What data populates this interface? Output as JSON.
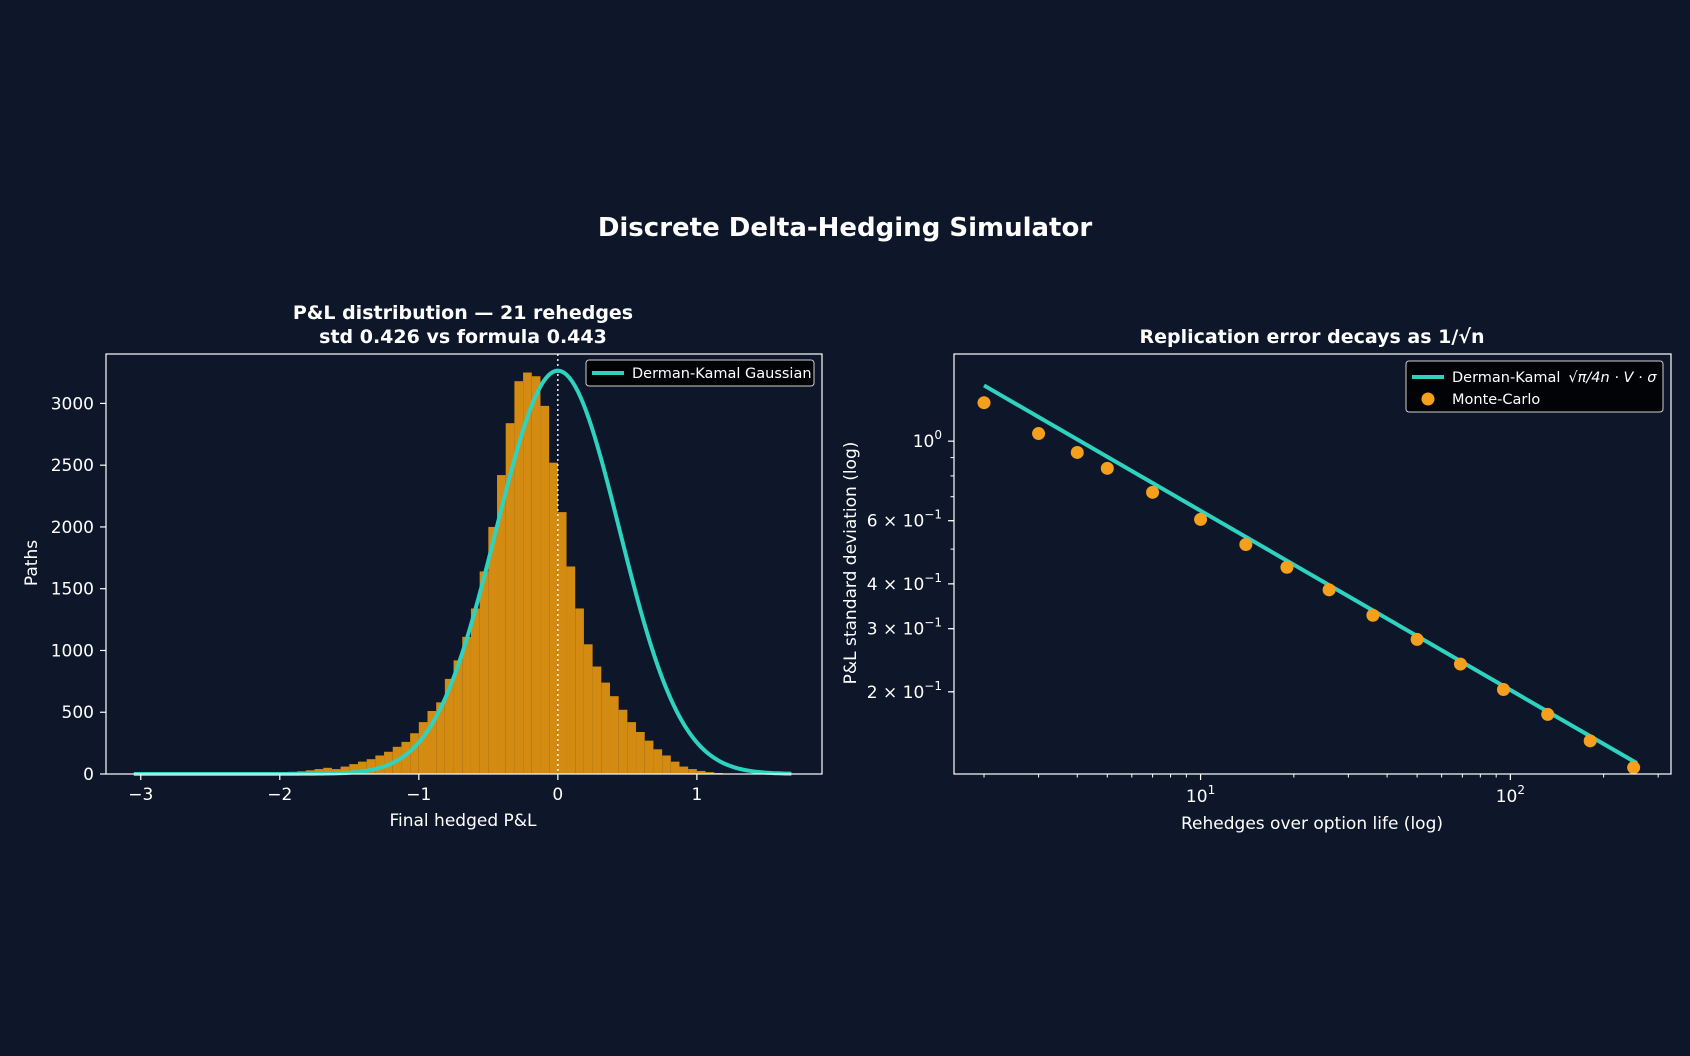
{
  "figure": {
    "title": "Discrete Delta-Hedging Simulator",
    "background": "#0e1729"
  },
  "colors": {
    "bar": "#d38b12",
    "curve": "#2ed3c0",
    "points": "#f5a01c",
    "frame": "#ffffff"
  },
  "chart_data": [
    {
      "type": "bar",
      "title": "P&L distribution — 21 rehedges",
      "subtitle": "std 0.426 vs formula 0.443",
      "xlabel": "Final hedged P&L",
      "ylabel": "Paths",
      "xlim": [
        -3.25,
        1.9
      ],
      "ylim": [
        0,
        3400
      ],
      "xticks": [
        -3,
        -2,
        -1,
        0,
        1
      ],
      "xtick_labels": [
        "−3",
        "−2",
        "−1",
        "0",
        "1"
      ],
      "yticks": [
        0,
        500,
        1000,
        1500,
        2000,
        2500,
        3000
      ],
      "ytick_labels": [
        "0",
        "500",
        "1000",
        "1500",
        "2000",
        "2500",
        "3000"
      ],
      "bin_width": 0.0625,
      "bin_start": -3.0,
      "bin_counts": [
        2,
        1,
        1,
        1,
        2,
        2,
        2,
        3,
        3,
        4,
        5,
        6,
        7,
        8,
        10,
        12,
        14,
        18,
        22,
        30,
        40,
        50,
        40,
        60,
        80,
        100,
        120,
        150,
        180,
        220,
        260,
        330,
        420,
        510,
        580,
        770,
        920,
        1110,
        1340,
        1640,
        2000,
        2420,
        2840,
        3180,
        3250,
        3220,
        2980,
        2520,
        2120,
        1680,
        1340,
        1050,
        870,
        740,
        630,
        520,
        420,
        340,
        270,
        200,
        150,
        100,
        60,
        40,
        25,
        15,
        8,
        4,
        2,
        1
      ],
      "zero_line_x": 0,
      "legend": [
        "Derman-Kamal Gaussian"
      ],
      "legend_position": "upper right",
      "curve": {
        "name": "Derman-Kamal Gaussian",
        "mu": 0.0,
        "sigma": 0.443,
        "peak": 3265,
        "x_range": [
          -3.05,
          1.68
        ]
      }
    },
    {
      "type": "scatter",
      "title": "Replication error decays as 1/√n",
      "xlabel": "Rehedges over option life (log)",
      "ylabel": "P&L standard deviation (log)",
      "xscale": "log",
      "yscale": "log",
      "xlim": [
        1.6,
        330
      ],
      "ylim": [
        0.118,
        1.75
      ],
      "xtick_labels": [
        {
          "value": 10,
          "base": "10",
          "exp": "1"
        },
        {
          "value": 100,
          "base": "10",
          "exp": "2"
        }
      ],
      "ytick_labels": [
        {
          "value": 1.0,
          "mant": "",
          "base": "10",
          "exp": "0"
        },
        {
          "value": 0.6,
          "mant": "6 × ",
          "base": "10",
          "exp": "−1"
        },
        {
          "value": 0.4,
          "mant": "4 × ",
          "base": "10",
          "exp": "−1"
        },
        {
          "value": 0.3,
          "mant": "3 × ",
          "base": "10",
          "exp": "−1"
        },
        {
          "value": 0.2,
          "mant": "2 × ",
          "base": "10",
          "exp": "−1"
        }
      ],
      "legend_position": "upper right",
      "series": [
        {
          "name": "Derman-Kamal",
          "legend_formula": "√π/4n · V · σ",
          "kind": "line",
          "x": [
            2,
            256
          ],
          "y": [
            1.43,
            0.1265
          ]
        },
        {
          "name": "Monte-Carlo",
          "kind": "scatter",
          "x": [
            2,
            3,
            4,
            5,
            7,
            10,
            14,
            19,
            26,
            36,
            50,
            69,
            95,
            132,
            181,
            250
          ],
          "y": [
            1.28,
            1.05,
            0.93,
            0.84,
            0.72,
            0.605,
            0.515,
            0.445,
            0.385,
            0.327,
            0.28,
            0.239,
            0.203,
            0.173,
            0.146,
            0.123
          ]
        }
      ]
    }
  ]
}
